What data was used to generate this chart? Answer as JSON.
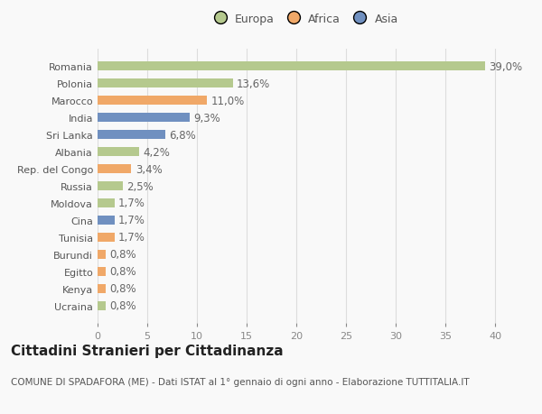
{
  "categories": [
    "Ucraina",
    "Kenya",
    "Egitto",
    "Burundi",
    "Tunisia",
    "Cina",
    "Moldova",
    "Russia",
    "Rep. del Congo",
    "Albania",
    "Sri Lanka",
    "India",
    "Marocco",
    "Polonia",
    "Romania"
  ],
  "values": [
    0.8,
    0.8,
    0.8,
    0.8,
    1.7,
    1.7,
    1.7,
    2.5,
    3.4,
    4.2,
    6.8,
    9.3,
    11.0,
    13.6,
    39.0
  ],
  "labels": [
    "0,8%",
    "0,8%",
    "0,8%",
    "0,8%",
    "1,7%",
    "1,7%",
    "1,7%",
    "2,5%",
    "3,4%",
    "4,2%",
    "6,8%",
    "9,3%",
    "11,0%",
    "13,6%",
    "39,0%"
  ],
  "colors": [
    "#b5c98e",
    "#f0a868",
    "#f0a868",
    "#f0a868",
    "#f0a868",
    "#7090c0",
    "#b5c98e",
    "#b5c98e",
    "#f0a868",
    "#b5c98e",
    "#7090c0",
    "#7090c0",
    "#f0a868",
    "#b5c98e",
    "#b5c98e"
  ],
  "legend_labels": [
    "Europa",
    "Africa",
    "Asia"
  ],
  "legend_colors": [
    "#b5c98e",
    "#f0a868",
    "#7090c0"
  ],
  "title": "Cittadini Stranieri per Cittadinanza",
  "subtitle": "COMUNE DI SPADAFORA (ME) - Dati ISTAT al 1° gennaio di ogni anno - Elaborazione TUTTITALIA.IT",
  "xlim": [
    0,
    42
  ],
  "xticks": [
    0,
    5,
    10,
    15,
    20,
    25,
    30,
    35,
    40
  ],
  "background_color": "#f9f9f9",
  "grid_color": "#dddddd",
  "bar_height": 0.55,
  "label_fontsize": 8.5,
  "title_fontsize": 11,
  "subtitle_fontsize": 7.5,
  "tick_fontsize": 8,
  "legend_fontsize": 9
}
